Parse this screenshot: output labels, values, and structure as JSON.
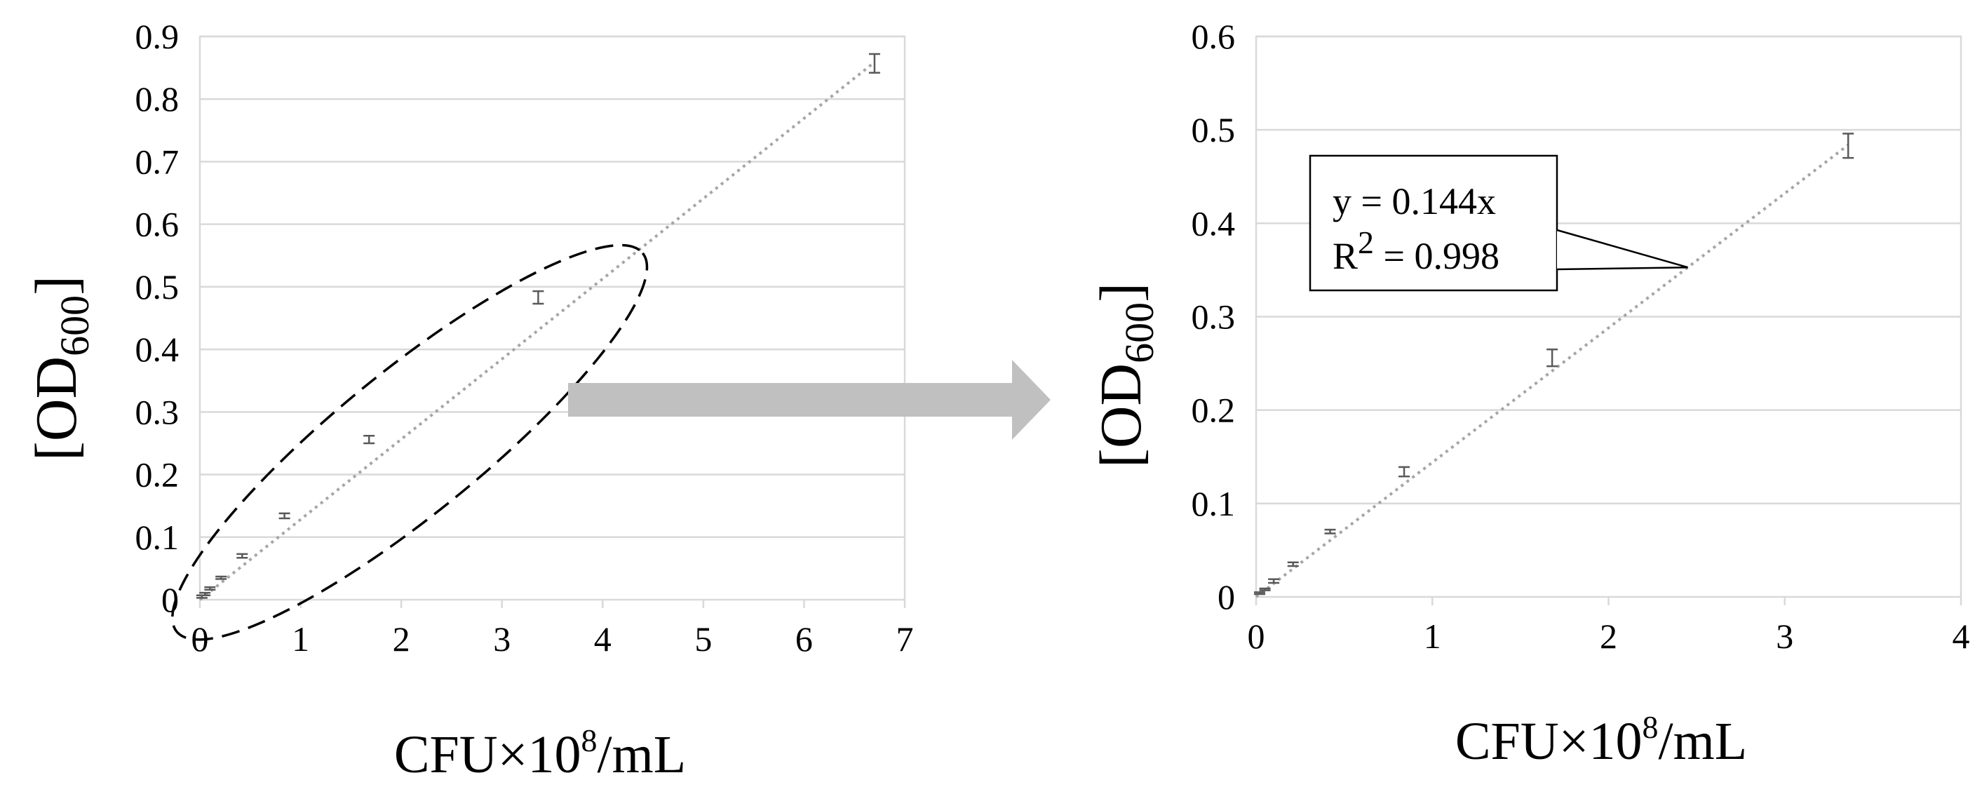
{
  "chart_data": [
    {
      "type": "scatter",
      "title": "",
      "xlabel": "CFU×10⁸/mL",
      "xlabel_main": "CFU×10",
      "xlabel_exp": "8",
      "xlabel_unit": "/mL",
      "ylabel_pre": "[OD",
      "ylabel_sub": "600",
      "ylabel_post": "]",
      "xlim": [
        0,
        7
      ],
      "ylim": [
        0,
        0.9
      ],
      "xticks": [
        0,
        1,
        2,
        3,
        4,
        5,
        6,
        7
      ],
      "yticks": [
        0,
        0.1,
        0.2,
        0.3,
        0.4,
        0.5,
        0.6,
        0.7,
        0.8,
        0.9
      ],
      "grid": "horizontal",
      "trendline": {
        "type": "linear",
        "slope": 0.1282,
        "intercept": 0,
        "x_range": [
          0,
          6.7
        ],
        "style": "dotted"
      },
      "points": [
        {
          "x": 0.02,
          "y": 0.005,
          "err": 0.002
        },
        {
          "x": 0.05,
          "y": 0.009,
          "err": 0.002
        },
        {
          "x": 0.1,
          "y": 0.018,
          "err": 0.002
        },
        {
          "x": 0.21,
          "y": 0.035,
          "err": 0.002
        },
        {
          "x": 0.42,
          "y": 0.07,
          "err": 0.003
        },
        {
          "x": 0.84,
          "y": 0.134,
          "err": 0.004
        },
        {
          "x": 1.68,
          "y": 0.256,
          "err": 0.006
        },
        {
          "x": 3.36,
          "y": 0.483,
          "err": 0.01
        },
        {
          "x": 6.7,
          "y": 0.857,
          "err": 0.015
        }
      ],
      "annotation": {
        "type": "dashed-ellipse",
        "encloses_x_range": [
          0,
          4
        ]
      }
    },
    {
      "type": "scatter",
      "title": "",
      "xlabel": "CFU×10⁸/mL",
      "xlabel_main": "CFU×10",
      "xlabel_exp": "8",
      "xlabel_unit": "/mL",
      "ylabel_pre": "[OD",
      "ylabel_sub": "600",
      "ylabel_post": "]",
      "xlim": [
        0,
        4
      ],
      "ylim": [
        0,
        0.6
      ],
      "xticks": [
        0,
        1,
        2,
        3,
        4
      ],
      "yticks": [
        0,
        0.1,
        0.2,
        0.3,
        0.4,
        0.5,
        0.6
      ],
      "grid": "horizontal",
      "trendline": {
        "type": "linear",
        "slope": 0.144,
        "intercept": 0,
        "x_range": [
          0,
          3.36
        ],
        "style": "dotted"
      },
      "points": [
        {
          "x": 0.02,
          "y": 0.004,
          "err": 0.001
        },
        {
          "x": 0.05,
          "y": 0.008,
          "err": 0.001
        },
        {
          "x": 0.1,
          "y": 0.017,
          "err": 0.002
        },
        {
          "x": 0.21,
          "y": 0.035,
          "err": 0.002
        },
        {
          "x": 0.42,
          "y": 0.07,
          "err": 0.002
        },
        {
          "x": 0.84,
          "y": 0.134,
          "err": 0.005
        },
        {
          "x": 1.68,
          "y": 0.256,
          "err": 0.009
        },
        {
          "x": 3.36,
          "y": 0.483,
          "err": 0.013
        }
      ],
      "equation_box": {
        "line1": "y = 0.144x",
        "line2_pre": "R",
        "line2_exp": "2",
        "line2_post": " = 0.998",
        "points_to_x": 2.45
      }
    }
  ],
  "arrow": {
    "color": "#c0c0c0",
    "direction": "right"
  },
  "colors": {
    "grid": "#d9d9d9",
    "frame": "#d9d9d9",
    "trendline": "#a6a6a6",
    "errorbar": "#595959",
    "ellipse": "#000000"
  }
}
